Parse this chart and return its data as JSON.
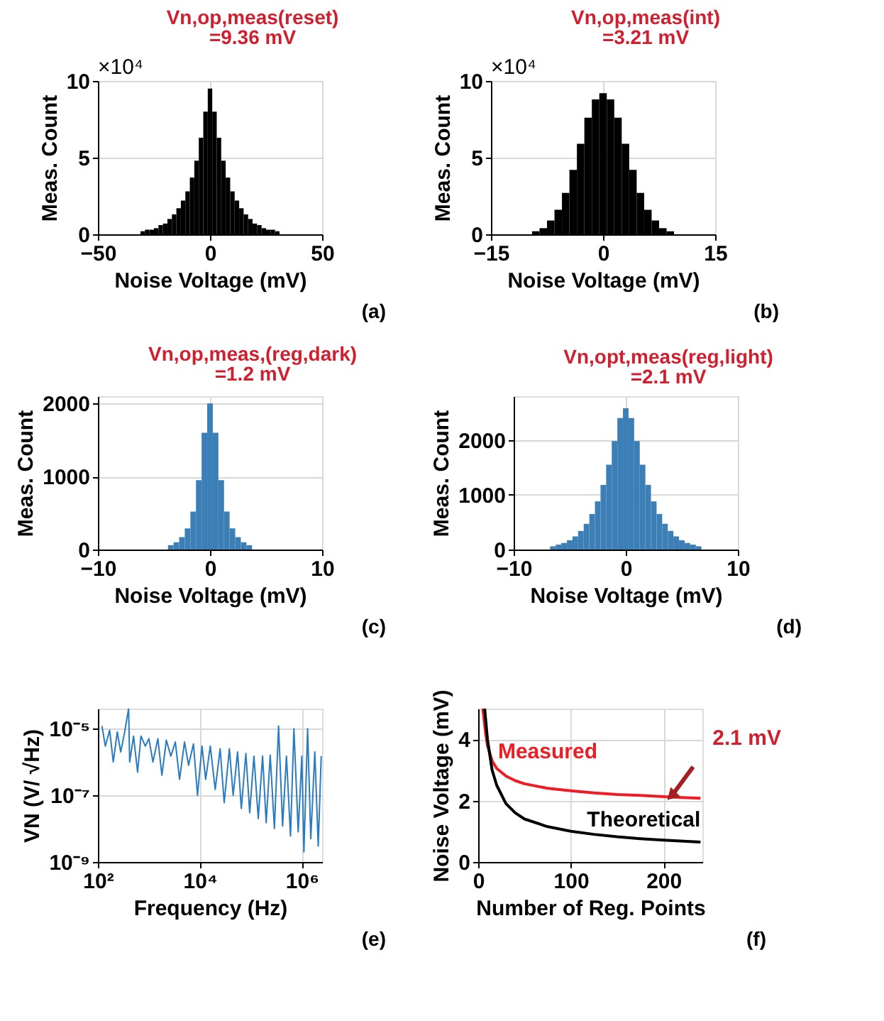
{
  "chart_data": [
    {
      "type": "histogram",
      "title": "Vn,op,meas(reset)",
      "subtitle": "=9.36 mV",
      "xlabel": "Noise Voltage (mV)",
      "ylabel": "Meas. Count",
      "xlim": [
        -50,
        50
      ],
      "ylim": [
        0,
        10
      ],
      "xticks": [
        -50,
        0,
        50
      ],
      "yticks": [
        0,
        5,
        10
      ],
      "grid": true,
      "color": "#000000",
      "bins": [
        -31,
        -29,
        -27,
        -25,
        -23,
        -21,
        -19,
        -17,
        -15,
        -13,
        -11,
        -9,
        -7,
        -5,
        -3,
        -1,
        1,
        3,
        5,
        7,
        9,
        11,
        13,
        15,
        17,
        19,
        21,
        23,
        25,
        27,
        29,
        31
      ],
      "values": [
        0.2,
        0.3,
        0.3,
        0.4,
        0.6,
        0.7,
        1.0,
        1.3,
        1.7,
        2.2,
        2.8,
        3.7,
        4.8,
        6.3,
        8.0,
        9.5,
        8.0,
        6.3,
        4.8,
        3.7,
        2.8,
        2.2,
        1.7,
        1.3,
        1.0,
        0.7,
        0.6,
        0.4,
        0.3,
        0.3,
        0.2
      ],
      "annotations": [
        "×10⁴",
        "(a)"
      ]
    },
    {
      "type": "histogram",
      "title": "Vn,op,meas(int)",
      "subtitle": "=3.21 mV",
      "xlabel": "Noise Voltage (mV)",
      "ylabel": "Meas. Count",
      "xlim": [
        -15,
        15
      ],
      "ylim": [
        0,
        10
      ],
      "xticks": [
        -15,
        0,
        15
      ],
      "yticks": [
        0,
        5,
        10
      ],
      "grid": true,
      "color": "#000000",
      "bins": [
        -9.5,
        -8.5,
        -7.5,
        -6.5,
        -5.5,
        -4.5,
        -3.5,
        -2.5,
        -1.5,
        -0.5,
        0.5,
        1.5,
        2.5,
        3.5,
        4.5,
        5.5,
        6.5,
        7.5,
        8.5,
        9.5
      ],
      "values": [
        0.2,
        0.4,
        0.9,
        1.6,
        2.7,
        4.2,
        5.9,
        7.6,
        8.8,
        9.2,
        8.8,
        7.6,
        5.9,
        4.2,
        2.7,
        1.6,
        0.9,
        0.4,
        0.2
      ],
      "annotations": [
        "×10⁴",
        "(b)"
      ]
    },
    {
      "type": "histogram",
      "title": "Vn,op,meas,(reg,dark)",
      "subtitle": "=1.2 mV",
      "xlabel": "Noise Voltage (mV)",
      "ylabel": "Meas. Count",
      "xlim": [
        -10,
        10
      ],
      "ylim": [
        0,
        2100
      ],
      "xticks": [
        -10,
        0,
        10
      ],
      "yticks": [
        0,
        1000,
        2000
      ],
      "grid": true,
      "color": "#3b7fb6",
      "bins": [
        -3.75,
        -3.25,
        -2.75,
        -2.25,
        -1.75,
        -1.25,
        -0.75,
        -0.25,
        0.25,
        0.75,
        1.25,
        1.75,
        2.25,
        2.75,
        3.25,
        3.75
      ],
      "values": [
        60,
        100,
        170,
        290,
        520,
        950,
        1600,
        2000,
        1600,
        950,
        520,
        290,
        170,
        100,
        60
      ],
      "annotations": [
        "(c)"
      ]
    },
    {
      "type": "histogram",
      "title": "Vn,opt,meas(reg,light)",
      "subtitle": "=2.1 mV",
      "xlabel": "Noise Voltage (mV)",
      "ylabel": "Meas. Count",
      "xlim": [
        -10,
        10
      ],
      "ylim": [
        0,
        2800
      ],
      "xticks": [
        -10,
        0,
        10
      ],
      "yticks": [
        0,
        1000,
        2000
      ],
      "grid": true,
      "color": "#3b7fb6",
      "bins": [
        -6.75,
        -6.25,
        -5.75,
        -5.25,
        -4.75,
        -4.25,
        -3.75,
        -3.25,
        -2.75,
        -2.25,
        -1.75,
        -1.25,
        -0.75,
        -0.25,
        0.25,
        0.75,
        1.25,
        1.75,
        2.25,
        2.75,
        3.25,
        3.75,
        4.25,
        4.75,
        5.25,
        5.75,
        6.25,
        6.75
      ],
      "values": [
        60,
        90,
        120,
        170,
        240,
        340,
        470,
        650,
        880,
        1180,
        1550,
        1980,
        2400,
        2580,
        2400,
        1980,
        1550,
        1180,
        880,
        650,
        470,
        340,
        240,
        170,
        120,
        90,
        60
      ],
      "annotations": [
        "(d)"
      ]
    },
    {
      "type": "line",
      "xlabel": "Frequency (Hz)",
      "ylabel": "VN (V/ √Hz)",
      "log": "xy",
      "xlim": [
        100,
        2500000
      ],
      "ylim": [
        1e-09,
        4e-05
      ],
      "xticks": [
        {
          "value": 100,
          "label": "10²"
        },
        {
          "value": 10000,
          "label": "10⁴"
        },
        {
          "value": 1000000,
          "label": "10⁶"
        }
      ],
      "yticks": [
        {
          "value": 1e-09,
          "label": "10⁻⁹"
        },
        {
          "value": 1e-07,
          "label": "10⁻⁷"
        },
        {
          "value": 1e-05,
          "label": "10⁻⁵"
        }
      ],
      "grid": true,
      "series": [
        {
          "color": "#2a7bbf",
          "x": [
            120,
            140,
            170,
            200,
            240,
            280,
            330,
            400,
            420,
            500,
            600,
            700,
            850,
            1000,
            1200,
            1500,
            1800,
            2200,
            2700,
            3300,
            4000,
            5000,
            6000,
            7500,
            9000,
            11000,
            13000,
            16000,
            20000,
            25000,
            30000,
            38000,
            45000,
            55000,
            65000,
            80000,
            95000,
            115000,
            140000,
            170000,
            200000,
            240000,
            290000,
            350000,
            420000,
            500000,
            600000,
            700000,
            850000,
            1000000,
            1100000,
            1300000,
            1500000,
            1800000,
            2100000,
            2400000
          ],
          "values": [
            1.2e-05,
            3e-06,
            9e-06,
            1e-06,
            8e-06,
            2e-06,
            7e-06,
            4e-05,
            1e-06,
            6e-06,
            5e-07,
            6e-06,
            3e-06,
            5e-06,
            1e-06,
            5e-06,
            4e-07,
            4.5e-06,
            1.5e-06,
            4e-06,
            3e-07,
            4e-06,
            8e-07,
            3.5e-06,
            1e-07,
            3e-06,
            3e-07,
            3e-06,
            1.5e-07,
            2.5e-06,
            6e-08,
            2.5e-06,
            1e-07,
            2e-06,
            4e-08,
            1.8e-06,
            3e-08,
            1.5e-06,
            2e-08,
            1.5e-06,
            1.5e-08,
            1.6e-06,
            1e-08,
            1.2e-05,
            1.2e-08,
            1.5e-06,
            6e-09,
            1e-05,
            8e-09,
            1.5e-06,
            2e-09,
            1e-05,
            5e-09,
            2e-06,
            3e-09,
            1.5e-06
          ]
        }
      ],
      "annotations": [
        "(e)"
      ]
    },
    {
      "type": "line",
      "xlabel": "Number of Reg. Points",
      "ylabel": "Noise Voltage (mV)",
      "xlim": [
        0,
        242
      ],
      "ylim": [
        0,
        5
      ],
      "xticks": [
        0,
        100,
        200
      ],
      "yticks": [
        0,
        2,
        4
      ],
      "grid": true,
      "series": [
        {
          "name": "Measured",
          "color": "#ee1c24",
          "x": [
            5,
            8,
            10,
            15,
            20,
            30,
            40,
            50,
            75,
            100,
            125,
            150,
            175,
            200,
            220,
            240
          ],
          "values": [
            5.0,
            4.2,
            3.8,
            3.3,
            3.05,
            2.8,
            2.65,
            2.55,
            2.4,
            2.32,
            2.25,
            2.2,
            2.17,
            2.13,
            2.1,
            2.08
          ]
        },
        {
          "name": "Theoretical",
          "color": "#000000",
          "x": [
            7,
            10,
            15,
            20,
            30,
            40,
            50,
            75,
            100,
            125,
            150,
            175,
            200,
            240
          ],
          "values": [
            5.0,
            4.0,
            3.0,
            2.5,
            1.9,
            1.6,
            1.4,
            1.15,
            1.0,
            0.9,
            0.82,
            0.76,
            0.71,
            0.65
          ]
        }
      ],
      "annotations": [
        {
          "text": "2.1 mV",
          "x": 210,
          "y": 2.2
        },
        "(f)"
      ]
    }
  ]
}
